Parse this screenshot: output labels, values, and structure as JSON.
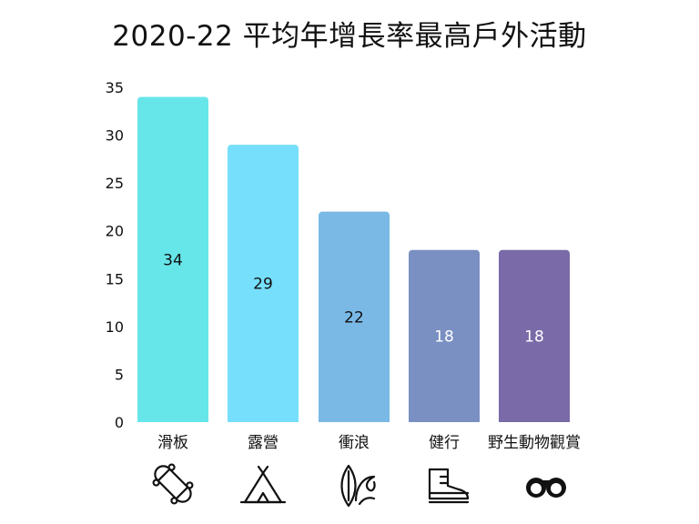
{
  "chart_data": {
    "type": "bar",
    "title": "2020-22 平均年增長率最高戶外活動",
    "xlabel": "",
    "ylabel": "",
    "categories": [
      "滑板",
      "露營",
      "衝浪",
      "健行",
      "野生動物觀賞"
    ],
    "values": [
      34,
      29,
      22,
      18,
      18
    ],
    "ylim": [
      0,
      35
    ],
    "yticks": [
      0,
      5,
      10,
      15,
      20,
      25,
      30,
      35
    ],
    "grid": false,
    "legend": "none",
    "bar_colors": [
      "#67e6ea",
      "#76dffb",
      "#7ab9e6",
      "#7a8fc2",
      "#7a6aa8"
    ],
    "label_colors": [
      "#111111",
      "#111111",
      "#111111",
      "#ffffff",
      "#ffffff"
    ],
    "icons": [
      "skateboard-icon",
      "tent-icon",
      "wave-surfboard-icon",
      "hiking-boot-icon",
      "binoculars-icon"
    ]
  }
}
